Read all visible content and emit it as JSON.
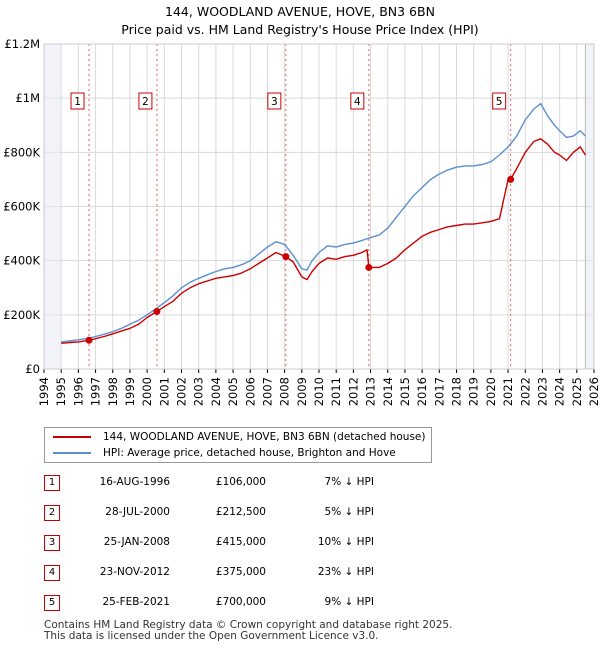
{
  "chart_data": {
    "type": "line",
    "title": "144, WOODLAND AVENUE, HOVE, BN3 6BN",
    "subtitle": "Price paid vs. HM Land Registry's House Price Index (HPI)",
    "xlim": [
      1994,
      2026
    ],
    "ylim": [
      0,
      1200000
    ],
    "x_ticks": [
      "1994",
      "1995",
      "1996",
      "1997",
      "1998",
      "1999",
      "2000",
      "2001",
      "2002",
      "2003",
      "2004",
      "2005",
      "2006",
      "2007",
      "2008",
      "2009",
      "2010",
      "2011",
      "2012",
      "2013",
      "2014",
      "2015",
      "2016",
      "2017",
      "2018",
      "2019",
      "2020",
      "2021",
      "2022",
      "2023",
      "2024",
      "2025",
      "2026"
    ],
    "y_ticks": [
      {
        "value": 0,
        "label": "£0"
      },
      {
        "value": 200000,
        "label": "£200K"
      },
      {
        "value": 400000,
        "label": "£400K"
      },
      {
        "value": 600000,
        "label": "£600K"
      },
      {
        "value": 800000,
        "label": "£800K"
      },
      {
        "value": 1000000,
        "label": "£1M"
      },
      {
        "value": 1200000,
        "label": "£1.2M"
      }
    ],
    "series": [
      {
        "name": "144, WOODLAND AVENUE, HOVE, BN3 6BN (detached house)",
        "color": "#cc0000",
        "x": [
          1995.0,
          1995.5,
          1996.0,
          1996.62,
          1997.0,
          1997.5,
          1998.0,
          1998.5,
          1999.0,
          1999.5,
          2000.0,
          2000.57,
          2001.0,
          2001.5,
          2002.0,
          2002.5,
          2003.0,
          2003.5,
          2004.0,
          2004.5,
          2005.0,
          2005.5,
          2006.0,
          2006.5,
          2007.0,
          2007.5,
          2008.07,
          2008.5,
          2009.0,
          2009.3,
          2009.6,
          2010.0,
          2010.5,
          2011.0,
          2011.5,
          2012.0,
          2012.5,
          2012.8,
          2012.9,
          2013.5,
          2014.0,
          2014.5,
          2015.0,
          2015.5,
          2016.0,
          2016.5,
          2017.0,
          2017.5,
          2018.0,
          2018.5,
          2019.0,
          2019.5,
          2020.0,
          2020.5,
          2021.0,
          2021.15,
          2021.5,
          2022.0,
          2022.5,
          2022.9,
          2023.3,
          2023.7,
          2024.0,
          2024.4,
          2024.8,
          2025.2,
          2025.5
        ],
        "y": [
          95000,
          98000,
          100000,
          106000,
          112000,
          120000,
          130000,
          140000,
          150000,
          165000,
          190000,
          212500,
          230000,
          250000,
          280000,
          300000,
          315000,
          325000,
          335000,
          340000,
          345000,
          355000,
          370000,
          390000,
          410000,
          430000,
          415000,
          395000,
          340000,
          330000,
          360000,
          390000,
          410000,
          405000,
          415000,
          420000,
          430000,
          440000,
          375000,
          375000,
          390000,
          410000,
          440000,
          465000,
          490000,
          505000,
          515000,
          525000,
          530000,
          535000,
          535000,
          540000,
          545000,
          555000,
          700000,
          700000,
          740000,
          800000,
          840000,
          850000,
          830000,
          800000,
          790000,
          770000,
          800000,
          820000,
          790000
        ]
      },
      {
        "name": "HPI: Average price, detached house, Brighton and Hove",
        "color": "#5b8fd0",
        "x": [
          1995.0,
          1995.5,
          1996.0,
          1996.5,
          1997.0,
          1997.5,
          1998.0,
          1998.5,
          1999.0,
          1999.5,
          2000.0,
          2000.5,
          2001.0,
          2001.5,
          2002.0,
          2002.5,
          2003.0,
          2003.5,
          2004.0,
          2004.5,
          2005.0,
          2005.5,
          2006.0,
          2006.5,
          2007.0,
          2007.5,
          2008.0,
          2008.5,
          2009.0,
          2009.3,
          2009.6,
          2010.0,
          2010.5,
          2011.0,
          2011.5,
          2012.0,
          2012.5,
          2013.0,
          2013.5,
          2014.0,
          2014.5,
          2015.0,
          2015.5,
          2016.0,
          2016.5,
          2017.0,
          2017.5,
          2018.0,
          2018.5,
          2019.0,
          2019.5,
          2020.0,
          2020.5,
          2021.0,
          2021.5,
          2022.0,
          2022.5,
          2022.9,
          2023.3,
          2023.7,
          2024.0,
          2024.4,
          2024.8,
          2025.2,
          2025.5
        ],
        "y": [
          100000,
          104000,
          108000,
          113000,
          120000,
          128000,
          138000,
          150000,
          165000,
          180000,
          200000,
          222000,
          245000,
          270000,
          300000,
          320000,
          335000,
          348000,
          360000,
          370000,
          375000,
          385000,
          400000,
          425000,
          450000,
          470000,
          460000,
          420000,
          370000,
          365000,
          400000,
          430000,
          455000,
          450000,
          460000,
          465000,
          475000,
          485000,
          495000,
          520000,
          560000,
          600000,
          640000,
          670000,
          700000,
          720000,
          735000,
          745000,
          750000,
          750000,
          755000,
          765000,
          790000,
          820000,
          860000,
          920000,
          960000,
          980000,
          935000,
          900000,
          880000,
          855000,
          860000,
          880000,
          860000
        ]
      }
    ],
    "sales": [
      {
        "num": "1",
        "x": 1996.62,
        "y": 106000
      },
      {
        "num": "2",
        "x": 2000.57,
        "y": 212500
      },
      {
        "num": "3",
        "x": 2008.07,
        "y": 415000
      },
      {
        "num": "4",
        "x": 2012.9,
        "y": 375000
      },
      {
        "num": "5",
        "x": 2021.15,
        "y": 700000
      }
    ]
  },
  "legend": {
    "property": "144, WOODLAND AVENUE, HOVE, BN3 6BN (detached house)",
    "hpi": "HPI: Average price, detached house, Brighton and Hove"
  },
  "sales_table": [
    {
      "num": "1",
      "date": "16-AUG-1996",
      "price": "£106,000",
      "hpi": "7% ↓ HPI"
    },
    {
      "num": "2",
      "date": "28-JUL-2000",
      "price": "£212,500",
      "hpi": "5% ↓ HPI"
    },
    {
      "num": "3",
      "date": "25-JAN-2008",
      "price": "£415,000",
      "hpi": "10% ↓ HPI"
    },
    {
      "num": "4",
      "date": "23-NOV-2012",
      "price": "£375,000",
      "hpi": "23% ↓ HPI"
    },
    {
      "num": "5",
      "date": "25-FEB-2021",
      "price": "£700,000",
      "hpi": "9% ↓ HPI"
    }
  ],
  "footer": {
    "line1": "Contains HM Land Registry data © Crown copyright and database right 2025.",
    "line2": "This data is licensed under the Open Government Licence v3.0."
  }
}
